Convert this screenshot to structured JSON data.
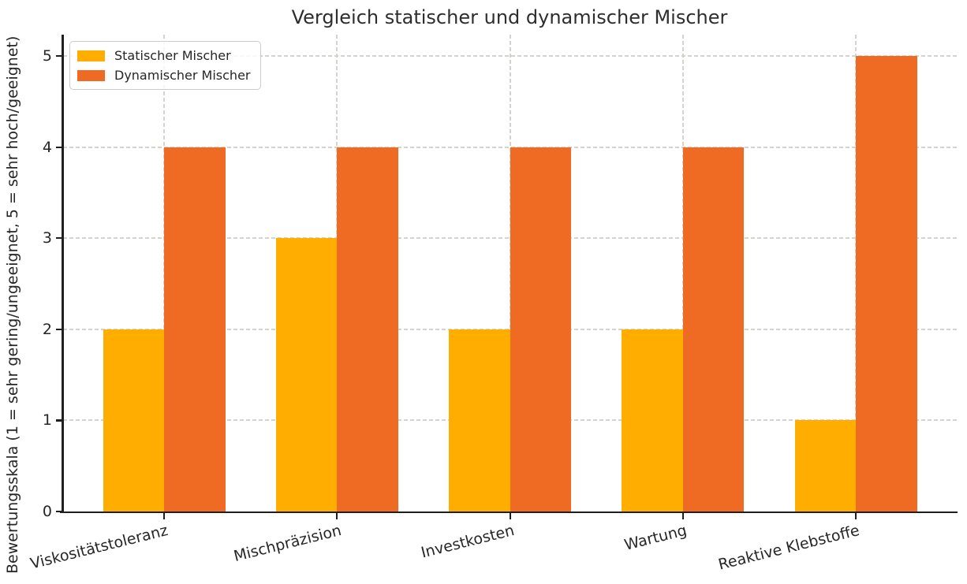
{
  "chart_data": {
    "type": "bar",
    "title": "Vergleich statischer und dynamischer Mischer",
    "categories": [
      "Viskositätstoleranz",
      "Mischpräzision",
      "Investkosten",
      "Wartung",
      "Reaktive Klebstoffe"
    ],
    "series": [
      {
        "name": "Statischer Mischer",
        "color": "#FFAE00",
        "values": [
          2,
          3,
          2,
          2,
          1
        ]
      },
      {
        "name": "Dynamischer Mischer",
        "color": "#EF6A23",
        "values": [
          4,
          4,
          4,
          4,
          5
        ]
      }
    ],
    "xlabel": "",
    "ylabel": "Bewertungsskala (1 = sehr gering/ungeeignet, 5 = sehr hoch/geeignet)",
    "yticks": [
      0,
      1,
      2,
      3,
      4,
      5
    ],
    "ylim": [
      0,
      5.25
    ],
    "grid": {
      "style": "dashed",
      "axes": "both",
      "color": "#d6d2cd"
    },
    "legend": {
      "position": "upper left"
    },
    "colors": {
      "spine": "#1f1f1f",
      "text": "#262626",
      "background": "#ffffff"
    }
  }
}
